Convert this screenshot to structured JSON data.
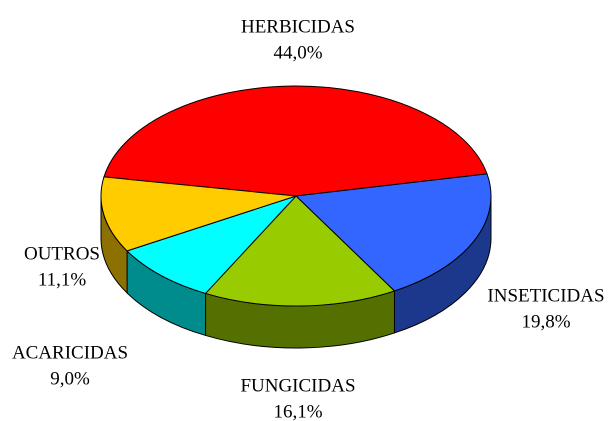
{
  "chart_data": {
    "type": "pie",
    "categories": [
      "HERBICIDAS",
      "INSETICIDAS",
      "FUNGICIDAS",
      "ACARICIDAS",
      "OUTROS"
    ],
    "values": [
      44.0,
      19.8,
      16.1,
      9.0,
      11.1
    ],
    "value_labels": [
      "44,0%",
      "19,8%",
      "16,1%",
      "9,0%",
      "11,1%"
    ],
    "colors": [
      "#ff0000",
      "#3366ff",
      "#99cc00",
      "#00ffff",
      "#ffcc00"
    ]
  }
}
